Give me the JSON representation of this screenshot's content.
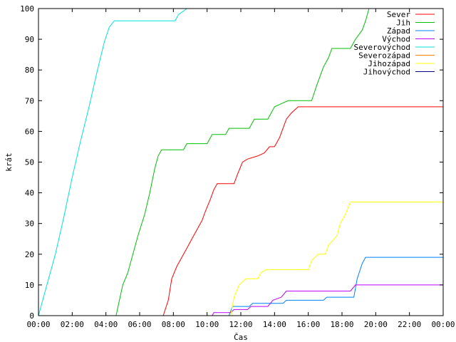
{
  "chart_data": {
    "type": "line",
    "title": "",
    "xlabel": "Čas",
    "ylabel": "krát",
    "xlim": [
      "00:00",
      "24:00"
    ],
    "ylim": [
      0,
      100
    ],
    "x_ticks": [
      "00:00",
      "02:00",
      "04:00",
      "06:00",
      "08:00",
      "10:00",
      "12:00",
      "14:00",
      "16:00",
      "18:00",
      "20:00",
      "22:00",
      "00:00"
    ],
    "y_ticks": [
      0,
      10,
      20,
      30,
      40,
      50,
      60,
      70,
      80,
      90,
      100
    ],
    "grid": false,
    "legend_position": "top-right",
    "series": [
      {
        "name": "Sever",
        "color": "#ff0000",
        "points": [
          [
            "00:00",
            0
          ],
          [
            "07:24",
            0
          ],
          [
            "07:42",
            5
          ],
          [
            "07:54",
            12
          ],
          [
            "08:12",
            16
          ],
          [
            "08:30",
            19
          ],
          [
            "08:48",
            22
          ],
          [
            "09:12",
            26
          ],
          [
            "09:24",
            28
          ],
          [
            "09:42",
            31
          ],
          [
            "09:54",
            34
          ],
          [
            "10:12",
            38
          ],
          [
            "10:24",
            41
          ],
          [
            "10:36",
            43
          ],
          [
            "11:36",
            43
          ],
          [
            "11:48",
            46
          ],
          [
            "12:06",
            50
          ],
          [
            "12:24",
            51
          ],
          [
            "13:00",
            52
          ],
          [
            "13:24",
            53
          ],
          [
            "13:42",
            55
          ],
          [
            "14:00",
            55
          ],
          [
            "14:18",
            58
          ],
          [
            "14:30",
            61
          ],
          [
            "14:42",
            64
          ],
          [
            "15:00",
            66
          ],
          [
            "15:24",
            68
          ],
          [
            "24:00",
            68
          ]
        ]
      },
      {
        "name": "Jih",
        "color": "#00c000",
        "points": [
          [
            "00:00",
            0
          ],
          [
            "04:36",
            0
          ],
          [
            "04:48",
            5
          ],
          [
            "05:00",
            10
          ],
          [
            "05:18",
            14
          ],
          [
            "05:36",
            20
          ],
          [
            "05:54",
            26
          ],
          [
            "06:18",
            33
          ],
          [
            "06:36",
            40
          ],
          [
            "06:54",
            48
          ],
          [
            "07:06",
            52
          ],
          [
            "07:18",
            54
          ],
          [
            "08:36",
            54
          ],
          [
            "08:48",
            56
          ],
          [
            "10:00",
            56
          ],
          [
            "10:18",
            59
          ],
          [
            "11:06",
            59
          ],
          [
            "11:18",
            61
          ],
          [
            "12:30",
            61
          ],
          [
            "12:48",
            64
          ],
          [
            "13:36",
            64
          ],
          [
            "13:48",
            66
          ],
          [
            "14:00",
            68
          ],
          [
            "14:24",
            69
          ],
          [
            "14:48",
            70
          ],
          [
            "16:12",
            70
          ],
          [
            "16:30",
            75
          ],
          [
            "16:54",
            81
          ],
          [
            "17:12",
            84
          ],
          [
            "17:24",
            87
          ],
          [
            "18:30",
            87
          ],
          [
            "18:48",
            90
          ],
          [
            "19:12",
            93
          ],
          [
            "19:24",
            96
          ],
          [
            "19:36",
            100
          ]
        ]
      },
      {
        "name": "Západ",
        "color": "#0080ff",
        "points": [
          [
            "00:00",
            0
          ],
          [
            "11:18",
            0
          ],
          [
            "11:30",
            3
          ],
          [
            "12:30",
            3
          ],
          [
            "12:42",
            4
          ],
          [
            "14:30",
            4
          ],
          [
            "14:42",
            5
          ],
          [
            "16:54",
            5
          ],
          [
            "17:06",
            6
          ],
          [
            "18:42",
            6
          ],
          [
            "18:54",
            12
          ],
          [
            "19:12",
            17
          ],
          [
            "19:24",
            19
          ],
          [
            "24:00",
            19
          ]
        ]
      },
      {
        "name": "Východ",
        "color": "#c000ff",
        "points": [
          [
            "00:00",
            0
          ],
          [
            "10:18",
            0
          ],
          [
            "10:24",
            1
          ],
          [
            "11:24",
            1
          ],
          [
            "11:36",
            2
          ],
          [
            "12:24",
            2
          ],
          [
            "12:36",
            3
          ],
          [
            "13:36",
            3
          ],
          [
            "13:54",
            5
          ],
          [
            "14:24",
            6
          ],
          [
            "14:42",
            8
          ],
          [
            "18:30",
            8
          ],
          [
            "18:48",
            10
          ],
          [
            "24:00",
            10
          ]
        ]
      },
      {
        "name": "Severovýchod",
        "color": "#00e0e0",
        "points": [
          [
            "00:00",
            0
          ],
          [
            "00:30",
            10
          ],
          [
            "01:00",
            20
          ],
          [
            "01:30",
            32
          ],
          [
            "02:00",
            45
          ],
          [
            "02:30",
            57
          ],
          [
            "03:00",
            68
          ],
          [
            "03:30",
            80
          ],
          [
            "03:54",
            89
          ],
          [
            "04:12",
            94
          ],
          [
            "04:30",
            96
          ],
          [
            "08:06",
            96
          ],
          [
            "08:18",
            98
          ],
          [
            "08:48",
            100
          ]
        ]
      },
      {
        "name": "Severozápad",
        "color": "#ff8000",
        "points": [
          [
            "00:00",
            0
          ],
          [
            "24:00",
            0
          ]
        ]
      },
      {
        "name": "Jihozápad",
        "color": "#ffff00",
        "points": [
          [
            "00:00",
            0
          ],
          [
            "11:24",
            0
          ],
          [
            "11:36",
            6
          ],
          [
            "11:54",
            10
          ],
          [
            "12:18",
            12
          ],
          [
            "13:00",
            12
          ],
          [
            "13:12",
            14
          ],
          [
            "13:30",
            15
          ],
          [
            "16:00",
            15
          ],
          [
            "16:12",
            18
          ],
          [
            "16:36",
            20
          ],
          [
            "17:00",
            20
          ],
          [
            "17:12",
            23
          ],
          [
            "17:42",
            26
          ],
          [
            "17:54",
            30
          ],
          [
            "18:12",
            33
          ],
          [
            "18:30",
            37
          ],
          [
            "24:00",
            37
          ]
        ]
      },
      {
        "name": "Jihovýchod",
        "color": "#000080",
        "points": [
          [
            "00:00",
            0
          ],
          [
            "24:00",
            0
          ]
        ]
      }
    ]
  }
}
